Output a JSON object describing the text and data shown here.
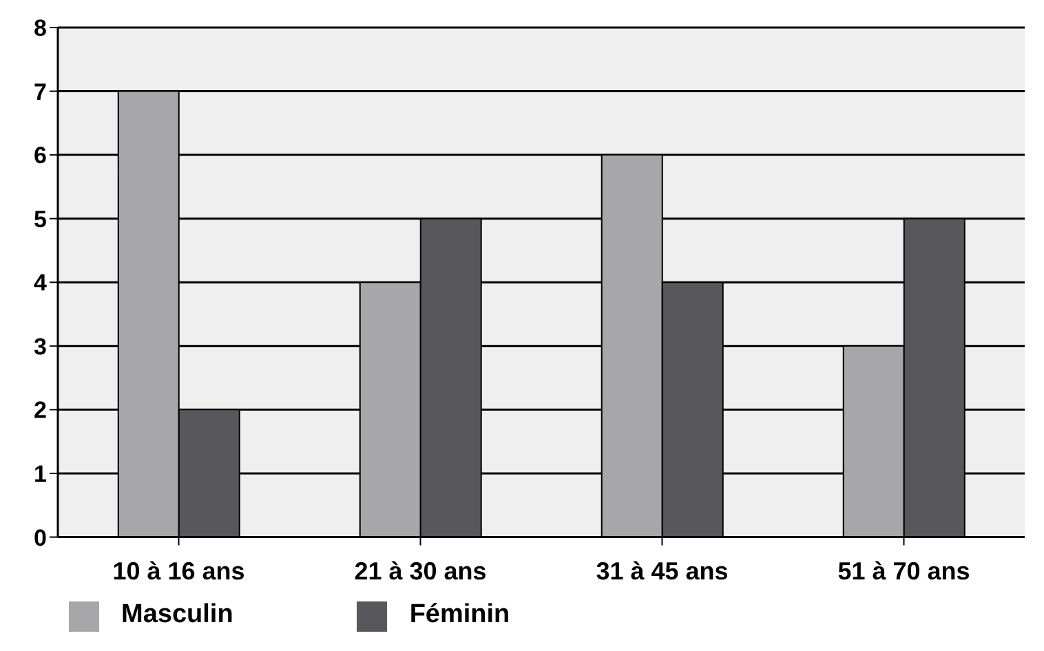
{
  "chart_data": {
    "type": "bar",
    "categories": [
      "10 à 16 ans",
      "21 à 30 ans",
      "31 à 45 ans",
      "51 à 70 ans"
    ],
    "series": [
      {
        "name": "Masculin",
        "color": "#a7a7a9",
        "values": [
          7,
          4,
          6,
          3
        ]
      },
      {
        "name": "Féminin",
        "color": "#58585c",
        "values": [
          2,
          5,
          4,
          5
        ]
      }
    ],
    "ylim": [
      0,
      8
    ],
    "yticks": [
      0,
      1,
      2,
      3,
      4,
      5,
      6,
      7,
      8
    ],
    "grid": "y",
    "legend": "bottom left"
  }
}
